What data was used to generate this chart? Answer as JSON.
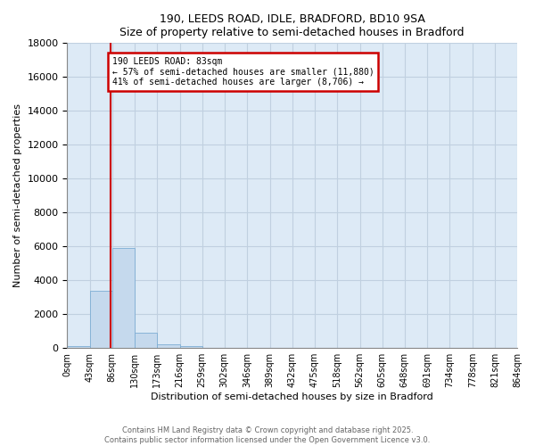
{
  "title1": "190, LEEDS ROAD, IDLE, BRADFORD, BD10 9SA",
  "title2": "Size of property relative to semi-detached houses in Bradford",
  "xlabel": "Distribution of semi-detached houses by size in Bradford",
  "ylabel": "Number of semi-detached properties",
  "property_size": 83,
  "property_label": "190 LEEDS ROAD: 83sqm",
  "annotation_line1": "← 57% of semi-detached houses are smaller (11,880)",
  "annotation_line2": "41% of semi-detached houses are larger (8,706) →",
  "bin_edges": [
    0,
    43,
    86,
    130,
    173,
    216,
    259,
    302,
    346,
    389,
    432,
    475,
    518,
    562,
    605,
    648,
    691,
    734,
    778,
    821,
    864
  ],
  "bin_labels": [
    "0sqm",
    "43sqm",
    "86sqm",
    "130sqm",
    "173sqm",
    "216sqm",
    "259sqm",
    "302sqm",
    "346sqm",
    "389sqm",
    "432sqm",
    "475sqm",
    "518sqm",
    "562sqm",
    "605sqm",
    "648sqm",
    "691sqm",
    "734sqm",
    "778sqm",
    "821sqm",
    "864sqm"
  ],
  "counts": [
    100,
    3400,
    5900,
    900,
    200,
    100,
    20,
    5,
    2,
    1,
    0,
    0,
    0,
    0,
    0,
    0,
    0,
    0,
    0,
    0
  ],
  "bar_color": "#c5d9ed",
  "bar_edge_color": "#7dadd4",
  "property_line_color": "#cc0000",
  "annotation_box_color": "#cc0000",
  "grid_color": "#c0d0e0",
  "background_color": "#ddeaf6",
  "ylim": [
    0,
    18000
  ],
  "yticks": [
    0,
    2000,
    4000,
    6000,
    8000,
    10000,
    12000,
    14000,
    16000,
    18000
  ],
  "footer1": "Contains HM Land Registry data © Crown copyright and database right 2025.",
  "footer2": "Contains public sector information licensed under the Open Government Licence v3.0."
}
